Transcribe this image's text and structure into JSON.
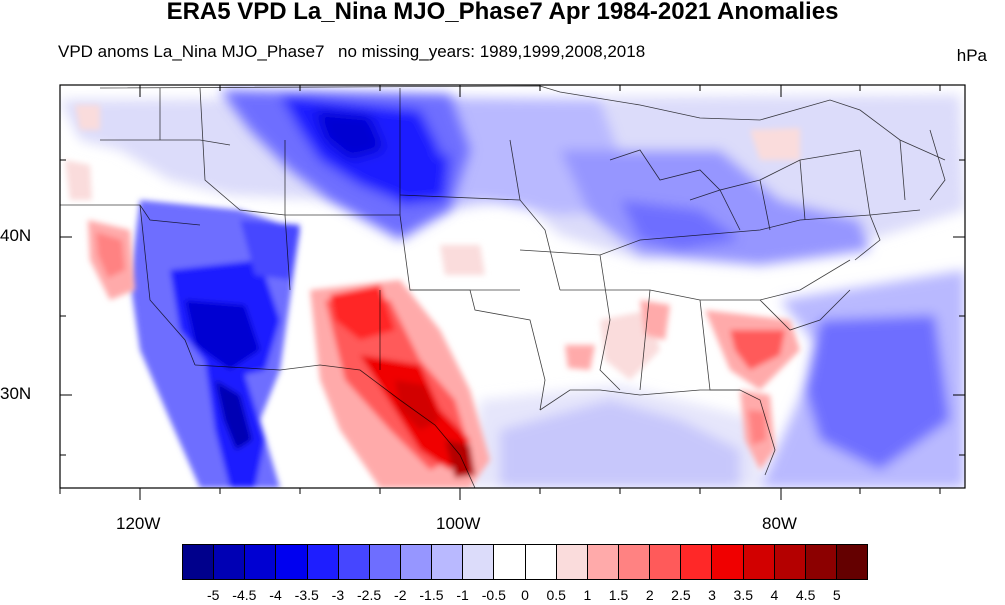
{
  "title": "ERA5 VPD La_Nina MJO_Phase7 Apr 1984-2021 Anomalies",
  "subtitle_left": "VPD anoms La_Nina MJO_Phase7",
  "subtitle_right": "no missing_years: 1989,1999,2008,2018",
  "units": "hPa",
  "latitude_labels": [
    "40N",
    "30N"
  ],
  "longitude_labels": [
    "120W",
    "100W",
    "80W"
  ],
  "colorbar": {
    "tick_labels": [
      "-5",
      "-4.5",
      "-4",
      "-3.5",
      "-3",
      "-2.5",
      "-2",
      "-1.5",
      "-1",
      "-0.5",
      "0",
      "0.5",
      "1",
      "1.5",
      "2",
      "2.5",
      "3",
      "3.5",
      "4",
      "4.5",
      "5"
    ],
    "colors": [
      "#00008c",
      "#0000b4",
      "#0000d2",
      "#0000f0",
      "#1e1eff",
      "#4646ff",
      "#6e6eff",
      "#9696ff",
      "#b9b9ff",
      "#dcdcfa",
      "#ffffff",
      "#ffffff",
      "#fadcdc",
      "#ffaaaa",
      "#ff8282",
      "#ff5a5a",
      "#ff2828",
      "#f00000",
      "#d20000",
      "#b40000",
      "#8c0000",
      "#640000"
    ]
  },
  "anomaly_regions": [
    {
      "name": "northern-rockies-dry-deficit",
      "level": -4
    },
    {
      "name": "southwest-desert-deficit",
      "level": -5
    },
    {
      "name": "texas-mexico-positive",
      "level": 3.5
    },
    {
      "name": "georgia-carolina-positive",
      "level": 2
    },
    {
      "name": "atlantic-ocean-deficit",
      "level": -3
    },
    {
      "name": "gulf-of-mexico-deficit",
      "level": -2
    },
    {
      "name": "great-lakes-deficit",
      "level": -1.5
    },
    {
      "name": "california-positive",
      "level": 1.5
    }
  ]
}
